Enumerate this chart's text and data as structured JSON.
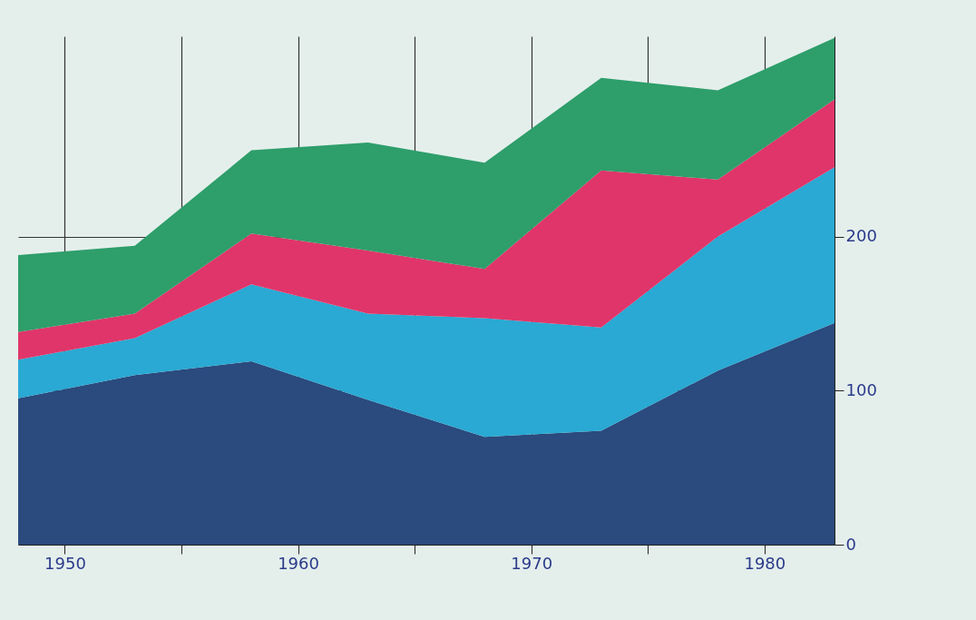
{
  "chart_data": {
    "type": "area",
    "stacked": true,
    "x": [
      1948,
      1953,
      1958,
      1963,
      1968,
      1973,
      1978,
      1983
    ],
    "series": [
      {
        "color": "#2b4a7e",
        "values": [
          95,
          110,
          119,
          94,
          70,
          74,
          113,
          144
        ]
      },
      {
        "color": "#29a9d3",
        "values": [
          25,
          24,
          50,
          56,
          77,
          67,
          87,
          101
        ]
      },
      {
        "color": "#e0356a",
        "values": [
          18,
          16,
          33,
          41,
          32,
          102,
          37,
          44
        ]
      },
      {
        "color": "#2e9e6a",
        "values": [
          50,
          44,
          54,
          70,
          69,
          60,
          58,
          40
        ]
      }
    ],
    "xlim": [
      1948,
      1983
    ],
    "xticks": [
      1950,
      {
        "value": 1955,
        "label": null
      },
      1960,
      {
        "value": 1965,
        "label": null
      },
      1970,
      {
        "value": 1975,
        "label": null
      },
      1980
    ],
    "ylim": [
      0,
      330
    ],
    "yticks": [
      0,
      100,
      200
    ],
    "grid": true,
    "legend": false
  }
}
